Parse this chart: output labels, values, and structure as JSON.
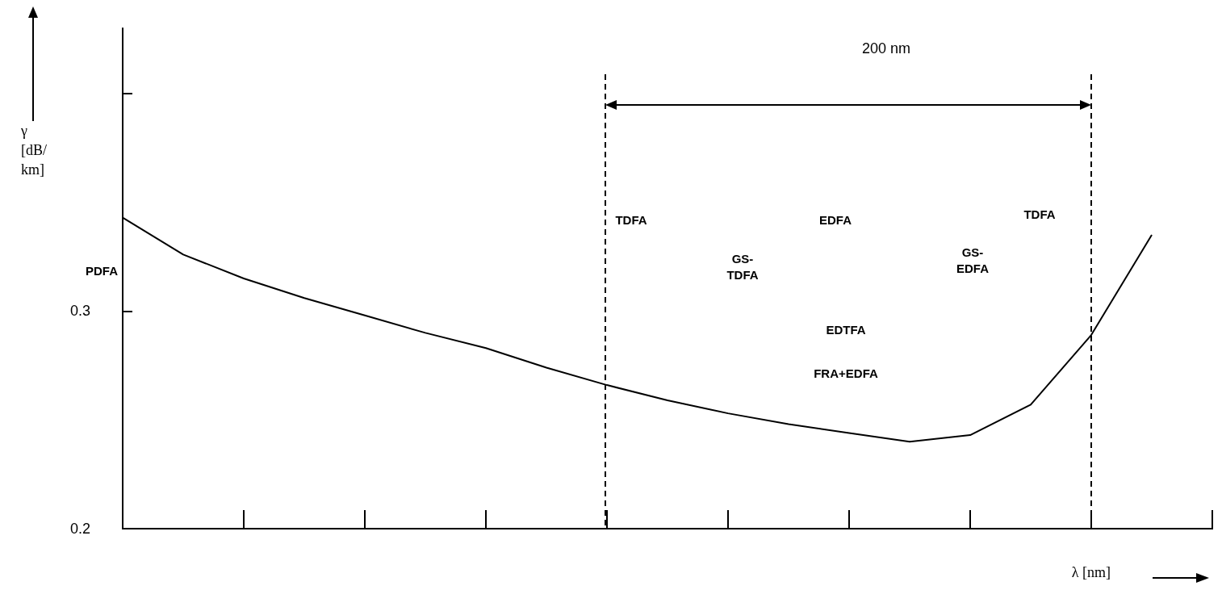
{
  "chart_data": {
    "type": "line",
    "xlabel": "λ [nm]",
    "ylabel": "γ [dB/km]",
    "categories": [
      null,
      null,
      null,
      null,
      null,
      null,
      null,
      null,
      null,
      null,
      null,
      null,
      null,
      null,
      null,
      null,
      null,
      null,
      null
    ],
    "ylim": [
      0.2,
      0.43
    ],
    "yticks": [
      0.2,
      0.3,
      {
        "value": 0.4,
        "label": null
      }
    ],
    "tick_labels": "y",
    "grid": false,
    "marker": "none",
    "line_style": "solid",
    "series": [
      {
        "color": "#000000",
        "values": [
          0.343,
          0.326,
          0.315,
          0.306,
          0.298,
          0.29,
          0.283,
          0.274,
          0.266,
          0.259,
          0.253,
          0.248,
          0.244,
          0.24,
          0.243,
          0.257,
          0.289,
          0.335,
          null
        ]
      }
    ],
    "annotations": [
      "200 nm",
      "PDFA",
      "TDFA",
      "GS-\nTDFA",
      "EDFA",
      "EDTFA",
      "FRA+EDFA",
      "GS-\nEDFA",
      "TDFA"
    ]
  }
}
